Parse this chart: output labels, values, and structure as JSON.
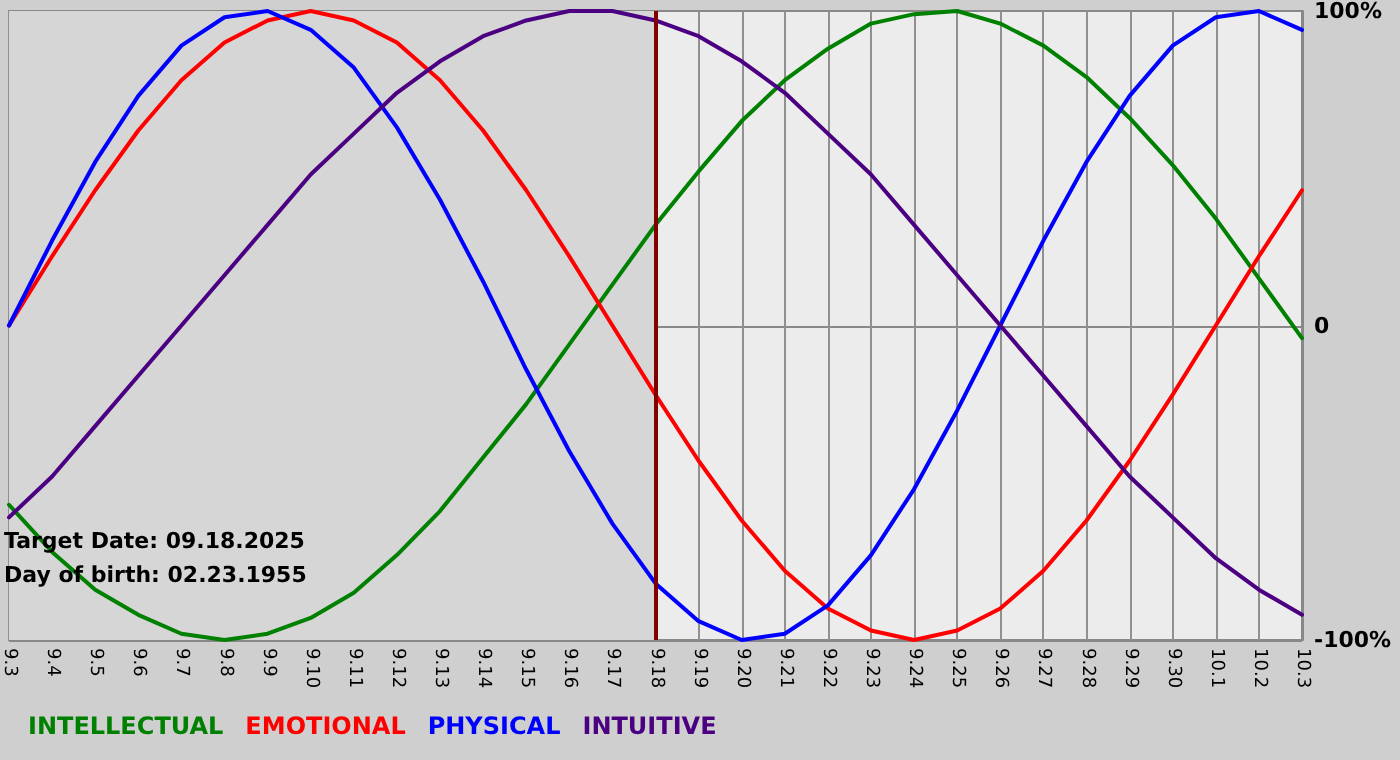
{
  "chart_data": {
    "type": "line",
    "categories": [
      "9.3",
      "9.4",
      "9.5",
      "9.6",
      "9.7",
      "9.8",
      "9.9",
      "9.10",
      "9.11",
      "9.12",
      "9.13",
      "9.14",
      "9.15",
      "9.16",
      "9.17",
      "9.18",
      "9.19",
      "9.20",
      "9.21",
      "9.22",
      "9.23",
      "9.24",
      "9.25",
      "9.26",
      "9.27",
      "9.28",
      "9.29",
      "9.30",
      "10.1",
      "10.2",
      "10.3"
    ],
    "series": [
      {
        "name": "INTELLECTUAL",
        "color": "#008000",
        "values": [
          -57,
          -72,
          -84,
          -92,
          -98,
          -100,
          -98,
          -93,
          -85,
          -73,
          -59,
          -42,
          -25,
          -6,
          13,
          32,
          49,
          65,
          78,
          88,
          96,
          99,
          100,
          96,
          89,
          79,
          66,
          51,
          34,
          15,
          -4
        ]
      },
      {
        "name": "EMOTIONAL",
        "color": "#ff0000",
        "values": [
          0,
          22,
          43,
          62,
          78,
          90,
          97,
          100,
          97,
          90,
          78,
          62,
          43,
          22,
          0,
          -22,
          -43,
          -62,
          -78,
          -90,
          -97,
          -100,
          -97,
          -90,
          -78,
          -62,
          -43,
          -22,
          0,
          22,
          43
        ]
      },
      {
        "name": "PHYSICAL",
        "color": "#0000ff",
        "values": [
          0,
          27,
          52,
          73,
          89,
          98,
          100,
          94,
          82,
          63,
          40,
          14,
          -14,
          -40,
          -63,
          -82,
          -94,
          -100,
          -98,
          -89,
          -73,
          -52,
          -27,
          0,
          27,
          52,
          73,
          89,
          98,
          100,
          94
        ]
      },
      {
        "name": "INTUITIVE",
        "color": "#4b0082",
        "values": [
          -61,
          -48,
          -32,
          -16,
          0,
          16,
          32,
          48,
          61,
          74,
          84,
          92,
          97,
          100,
          100,
          97,
          92,
          84,
          74,
          61,
          48,
          32,
          16,
          0,
          -16,
          -32,
          -48,
          -61,
          -74,
          -84,
          -92
        ]
      }
    ],
    "ylim": [
      -100,
      100
    ],
    "yticks": [
      {
        "value": -100,
        "label": "-100%"
      },
      0,
      {
        "value": 100,
        "label": "100%"
      }
    ],
    "ref_lines": [
      {
        "axis": "x",
        "value": "9.18",
        "color": "#800000"
      }
    ],
    "bands": [
      {
        "axis": "x",
        "from": "9.3",
        "to": "9.18",
        "color": "#d6d6d6"
      }
    ],
    "annotations": [
      "Target Date: 09.18.2025",
      "Day of birth: 02.23.1955"
    ],
    "grid": true,
    "legend": "bottom left",
    "marker": "none",
    "line_style": "solid"
  }
}
